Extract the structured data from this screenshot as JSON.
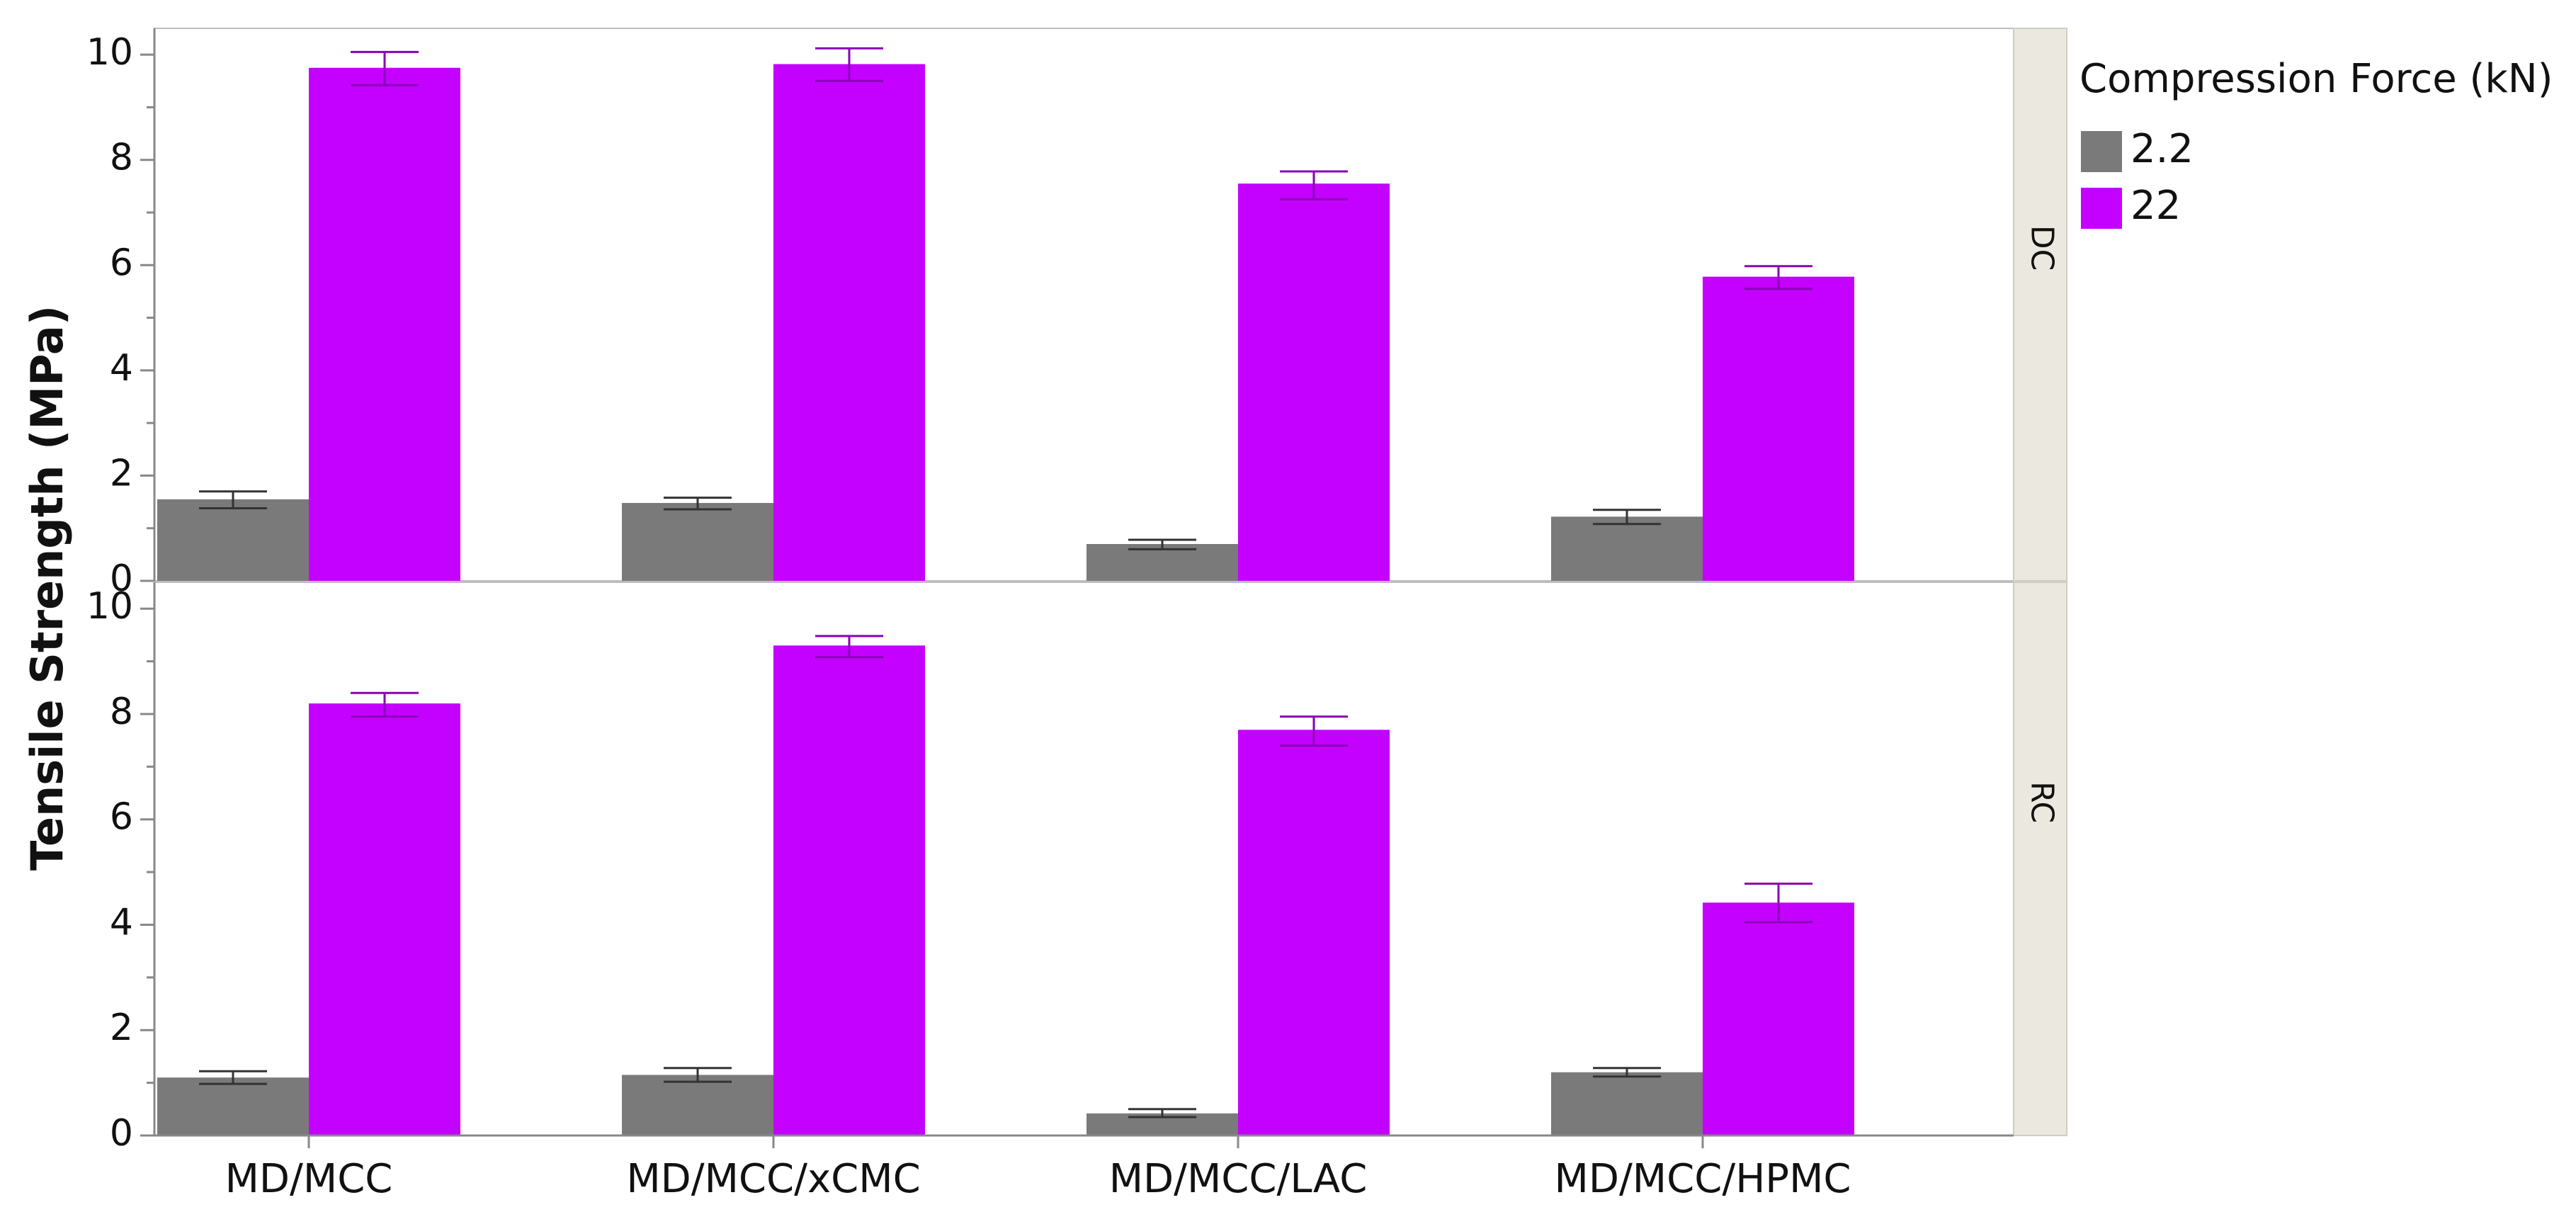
{
  "chart_data": {
    "type": "bar",
    "ylabel": "Tensile Strength (MPa)",
    "xlabel": "",
    "ylim": [
      0,
      10.5
    ],
    "yticks": [
      0,
      2,
      4,
      6,
      8,
      10
    ],
    "categories": [
      "MD/MCC",
      "MD/MCC/xCMC",
      "MD/MCC/LAC",
      "MD/MCC/HPMC"
    ],
    "legend": {
      "title": "Compression Force (kN)",
      "position": "top-right",
      "entries": [
        {
          "name": "2.2",
          "color": "#7a7a7a"
        },
        {
          "name": "22",
          "color": "#c400ff"
        }
      ]
    },
    "panels": [
      {
        "facet": "DC",
        "series": [
          {
            "name": "2.2",
            "color": "#7a7a7a",
            "values": [
              1.55,
              1.48,
              0.7,
              1.22
            ],
            "err_low": [
              1.38,
              1.36,
              0.6,
              1.08
            ],
            "err_high": [
              1.7,
              1.58,
              0.78,
              1.35
            ]
          },
          {
            "name": "22",
            "color": "#c400ff",
            "values": [
              9.75,
              9.82,
              7.55,
              5.78
            ],
            "err_low": [
              9.42,
              9.5,
              7.25,
              5.55
            ],
            "err_high": [
              10.05,
              10.12,
              7.78,
              5.98
            ]
          }
        ]
      },
      {
        "facet": "RC",
        "series": [
          {
            "name": "2.2",
            "color": "#7a7a7a",
            "values": [
              1.1,
              1.15,
              0.42,
              1.2
            ],
            "err_low": [
              0.98,
              1.02,
              0.35,
              1.12
            ],
            "err_high": [
              1.22,
              1.28,
              0.5,
              1.28
            ]
          },
          {
            "name": "22",
            "color": "#c400ff",
            "values": [
              8.2,
              9.3,
              7.7,
              4.42
            ],
            "err_low": [
              7.95,
              9.08,
              7.4,
              4.05
            ],
            "err_high": [
              8.4,
              9.48,
              7.95,
              4.78
            ]
          }
        ]
      }
    ]
  }
}
